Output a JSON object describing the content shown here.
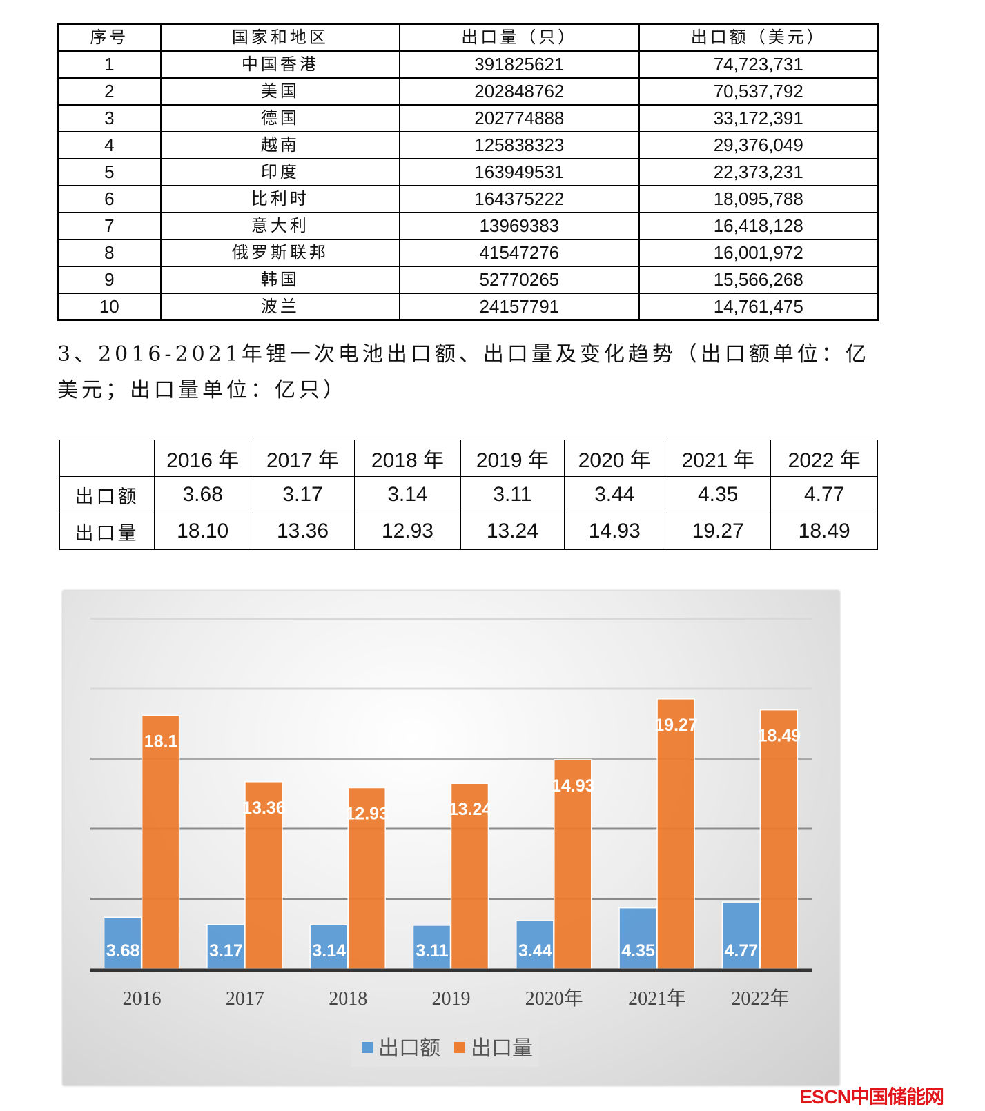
{
  "table1": {
    "headers": [
      "序号",
      "国家和地区",
      "出口量（只）",
      "出口额（美元）"
    ],
    "rows": [
      [
        "1",
        "中国香港",
        "391825621",
        "74,723,731"
      ],
      [
        "2",
        "美国",
        "202848762",
        "70,537,792"
      ],
      [
        "3",
        "德国",
        "202774888",
        "33,172,391"
      ],
      [
        "4",
        "越南",
        "125838323",
        "29,376,049"
      ],
      [
        "5",
        "印度",
        "163949531",
        "22,373,231"
      ],
      [
        "6",
        "比利时",
        "164375222",
        "18,095,788"
      ],
      [
        "7",
        "意大利",
        "13969383",
        "16,418,128"
      ],
      [
        "8",
        "俄罗斯联邦",
        "41547276",
        "16,001,972"
      ],
      [
        "9",
        "韩国",
        "52770265",
        "15,566,268"
      ],
      [
        "10",
        "波兰",
        "24157791",
        "14,761,475"
      ]
    ]
  },
  "section_heading": "3、2016-2021年锂一次电池出口额、出口量及变化趋势（出口额单位：亿美元；出口量单位：亿只）",
  "table2": {
    "headers": [
      "",
      "2016 年",
      "2017 年",
      "2018 年",
      "2019 年",
      "2020 年",
      "2021 年",
      "2022 年"
    ],
    "rows": [
      [
        "出口额",
        "3.68",
        "3.17",
        "3.14",
        "3.11",
        "3.44",
        "4.35",
        "4.77"
      ],
      [
        "出口量",
        "18.10",
        "13.36",
        "12.93",
        "13.24",
        "14.93",
        "19.27",
        "18.49"
      ]
    ]
  },
  "chart_data": {
    "type": "bar",
    "categories": [
      "2016",
      "2017",
      "2018",
      "2019",
      "2020年",
      "2021年",
      "2022年"
    ],
    "series": [
      {
        "name": "出口额",
        "values": [
          3.68,
          3.17,
          3.14,
          3.11,
          3.44,
          4.35,
          4.77
        ],
        "color": "#5b9bd5",
        "labels": [
          "3.68",
          "3.17",
          "3.14",
          "3.11",
          "3.44",
          "4.35",
          "4.77"
        ]
      },
      {
        "name": "出口量",
        "values": [
          18.1,
          13.36,
          12.93,
          13.24,
          14.93,
          19.27,
          18.49
        ],
        "color": "#ed7d31",
        "labels": [
          "18.1",
          "13.36",
          "12.93",
          "13.24",
          "14.93",
          "19.27",
          "18.49"
        ]
      }
    ],
    "ylim": [
      0,
      25
    ],
    "grid": true,
    "y_gridlines": [
      5,
      10,
      15,
      20,
      25
    ],
    "y_tick_labels_shown": false,
    "legend": "bottom"
  },
  "watermark": "ESCN中国储能网"
}
